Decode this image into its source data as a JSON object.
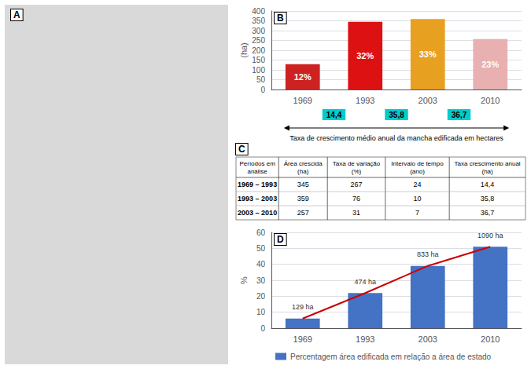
{
  "chart_data": [
    {
      "type": "image",
      "title": "A"
    },
    {
      "type": "bar",
      "title": "B",
      "categories": [
        "1969",
        "1993",
        "2003",
        "2010"
      ],
      "values": [
        129,
        345,
        359,
        257
      ],
      "colors": [
        "#cc2222",
        "#dd1111",
        "#e8a020",
        "#e8b0b0"
      ],
      "annotations": [
        {
          "category": "1969",
          "text": "12%"
        },
        {
          "category": "1993",
          "text": "32%"
        },
        {
          "category": "2003",
          "text": "33%"
        },
        {
          "category": "2010",
          "text": "23%"
        }
      ],
      "ylabel": "(ha)",
      "ylim": [
        0,
        400
      ],
      "yticks": [
        0,
        50,
        100,
        150,
        200,
        250,
        300,
        350,
        400
      ],
      "grid": true,
      "growth_rates": {
        "values": [
          14.4,
          35.8,
          36.7
        ],
        "value_labels": [
          "14,4",
          "35,8",
          "36,7"
        ],
        "color": "#00cccc",
        "label": "Taxa de crescimento médio anual da mancha edificada em hectares"
      }
    },
    {
      "type": "table",
      "title": "C",
      "headers": [
        "Períodos em\nanálise",
        "Área crescida\n(ha)",
        "Taxa de variação\n(%)",
        "Intervalo de tempo\n(ano)",
        "Taxa crescimento anual\n(ha)"
      ],
      "rows": [
        [
          "1969 – 1993",
          "345",
          "267",
          "24",
          "14,4"
        ],
        [
          "1993 – 2003",
          "359",
          "76",
          "10",
          "35,8"
        ],
        [
          "2003 – 2010",
          "257",
          "31",
          "7",
          "36,7"
        ]
      ]
    },
    {
      "type": "bar",
      "title": "D",
      "categories": [
        "1969",
        "1993",
        "2003",
        "2010"
      ],
      "series": [
        {
          "name": "Percentagem área edificada em relação a área de estado",
          "type": "bar",
          "color": "#4472c4",
          "values": [
            6,
            22,
            39,
            51
          ]
        },
        {
          "type": "line",
          "color": "#cc0000",
          "values": [
            6,
            22,
            39,
            51
          ]
        }
      ],
      "annotations": [
        {
          "category": "1969",
          "text": "129 ha"
        },
        {
          "category": "1993",
          "text": "474 ha"
        },
        {
          "category": "2003",
          "text": "833 ha"
        },
        {
          "category": "2010",
          "text": "1090 ha"
        }
      ],
      "ylabel": "%",
      "ylim": [
        0,
        60
      ],
      "yticks": [
        0,
        10,
        20,
        30,
        40,
        50,
        60
      ],
      "grid": true,
      "legend": "bottom"
    }
  ]
}
